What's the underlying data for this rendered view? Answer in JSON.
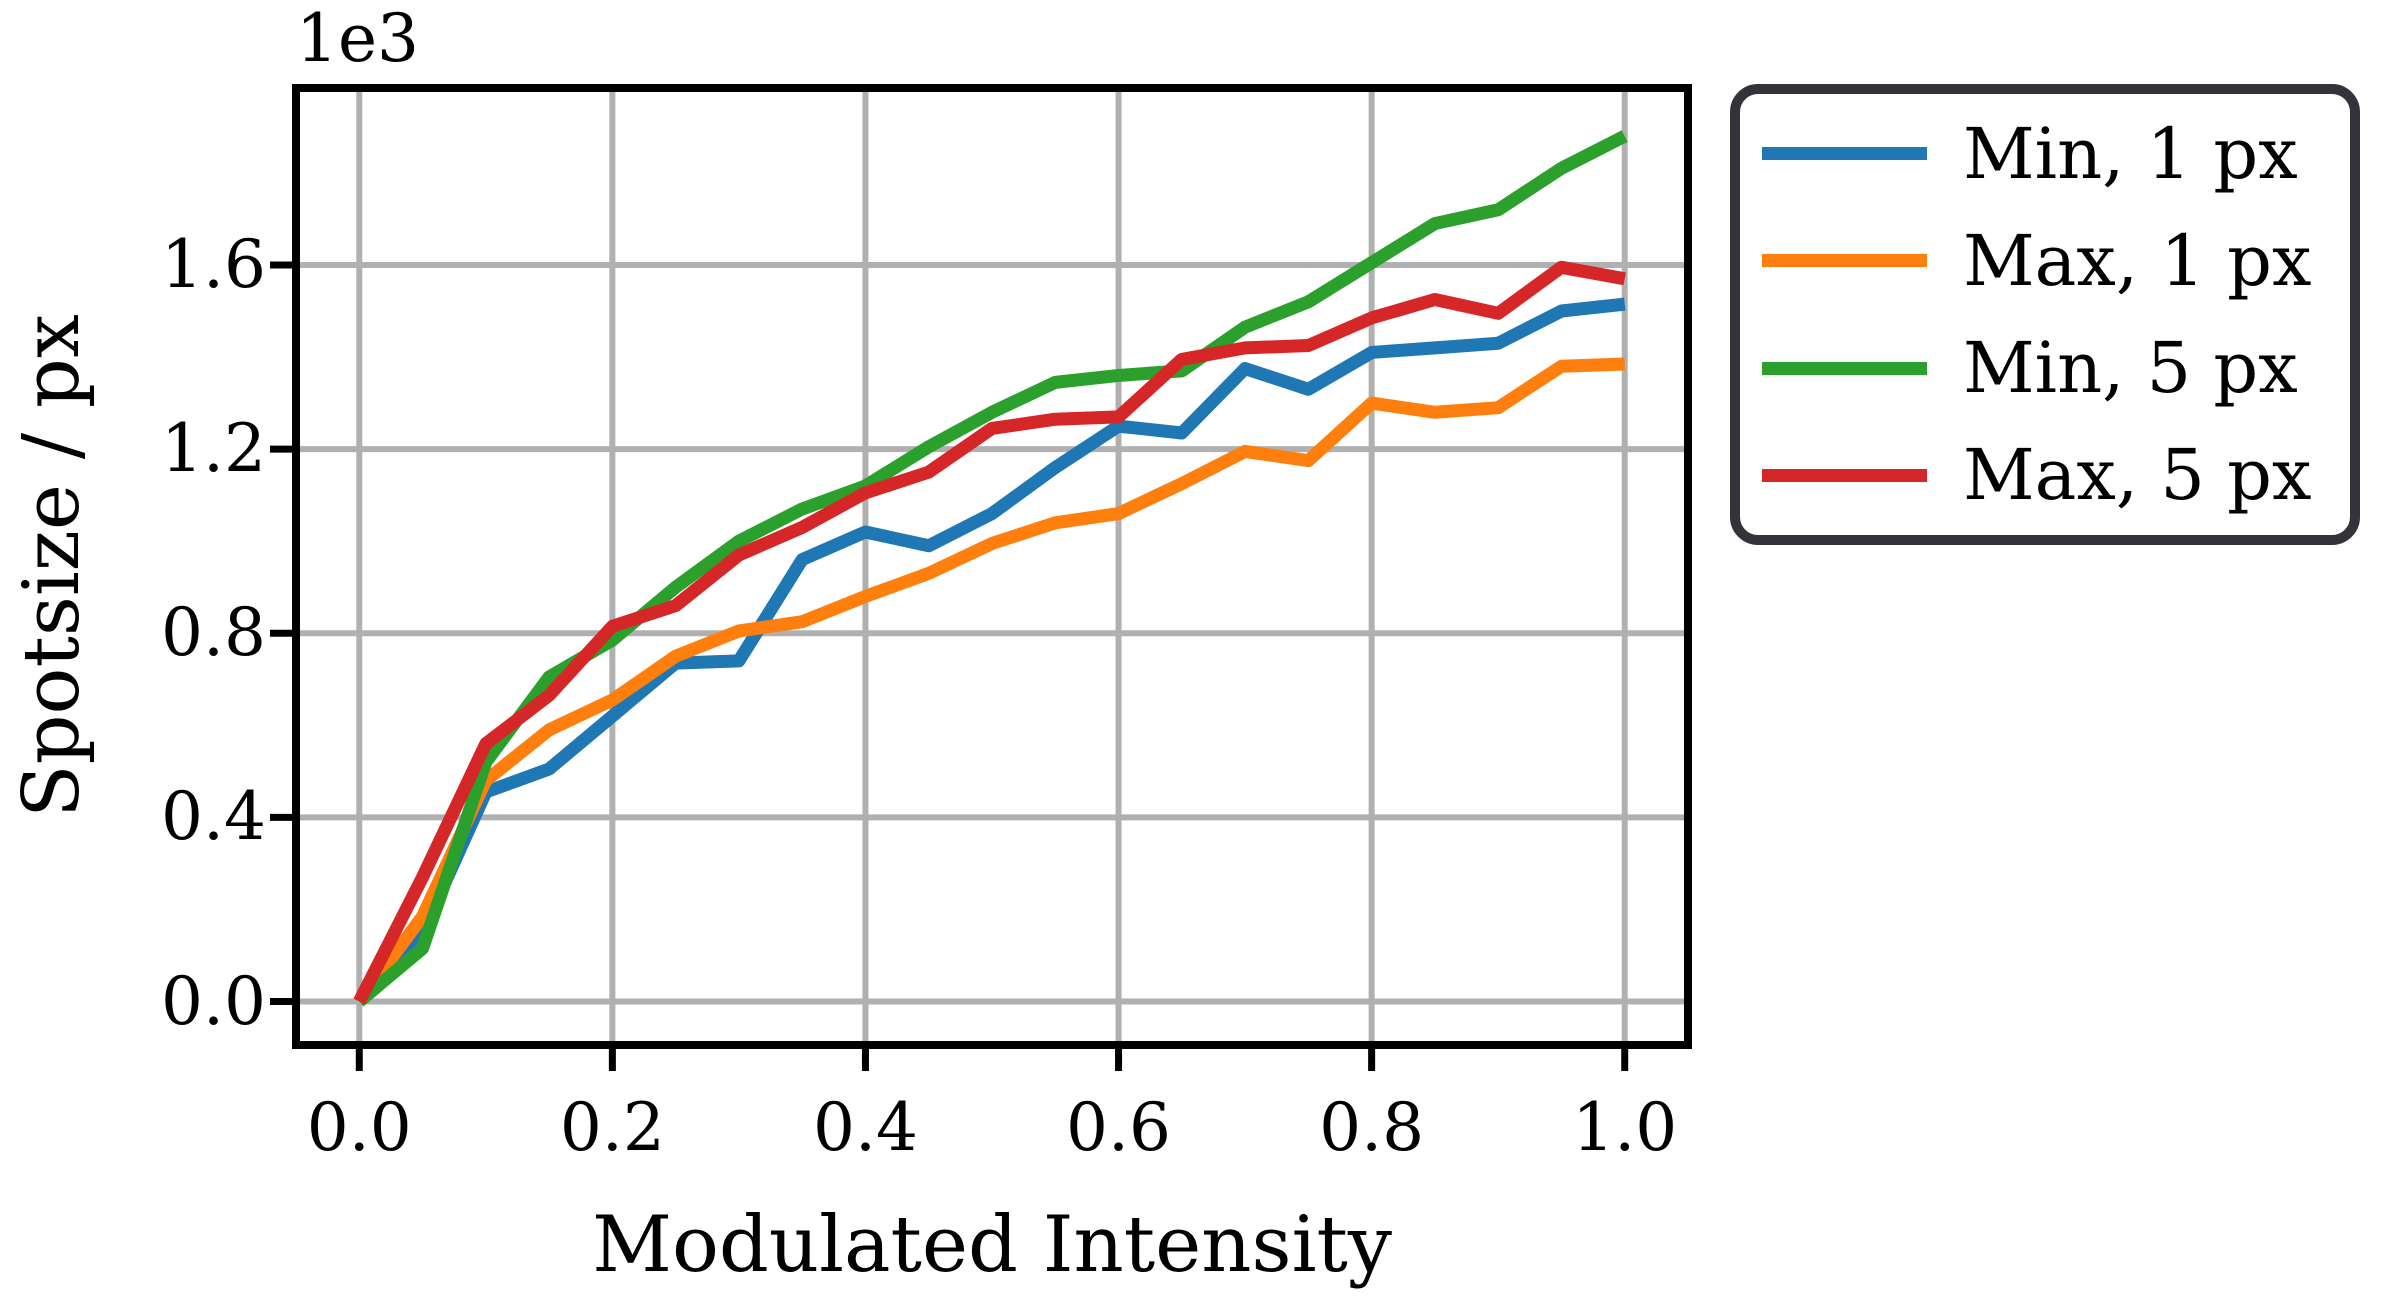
{
  "chart_data": {
    "type": "line",
    "title": "",
    "xlabel": "Modulated Intensity",
    "ylabel": "Spotsize / px",
    "y_axis_offset_text": "1e3",
    "grid": true,
    "legend_position": "upper right, outside plot area",
    "xlim": [
      -0.05,
      1.05
    ],
    "ylim": [
      -94.5,
      1984.5
    ],
    "xticks": [
      0.0,
      0.2,
      0.4,
      0.6,
      0.8,
      1.0
    ],
    "xticklabels": [
      "0.0",
      "0.2",
      "0.4",
      "0.6",
      "0.8",
      "1.0"
    ],
    "yticks": [
      0,
      400,
      800,
      1200,
      1600
    ],
    "yticklabels": [
      "0.0",
      "0.4",
      "0.8",
      "1.2",
      "1.6"
    ],
    "x": [
      0.0,
      0.05,
      0.1,
      0.15,
      0.2,
      0.25,
      0.3,
      0.35,
      0.4,
      0.45,
      0.5,
      0.55,
      0.6,
      0.65,
      0.7,
      0.75,
      0.8,
      0.85,
      0.9,
      0.95,
      1.0
    ],
    "series": [
      {
        "label": "Min, 1 px",
        "color": "#1f77b4",
        "values": [
          0,
          150,
          455,
          505,
          620,
          735,
          740,
          960,
          1020,
          990,
          1060,
          1160,
          1250,
          1235,
          1375,
          1330,
          1410,
          1420,
          1430,
          1500,
          1515
        ]
      },
      {
        "label": "Max, 1 px",
        "color": "#ff7f0e",
        "values": [
          0,
          185,
          480,
          590,
          655,
          750,
          805,
          825,
          880,
          930,
          995,
          1040,
          1060,
          1125,
          1195,
          1175,
          1300,
          1280,
          1290,
          1380,
          1385
        ]
      },
      {
        "label": "Min, 5 px",
        "color": "#2ca02c",
        "values": [
          0,
          115,
          520,
          705,
          785,
          900,
          1000,
          1070,
          1120,
          1205,
          1280,
          1345,
          1360,
          1370,
          1465,
          1520,
          1605,
          1690,
          1720,
          1810,
          1880
        ]
      },
      {
        "label": "Max, 5 px",
        "color": "#d62728",
        "values": [
          0,
          270,
          560,
          665,
          815,
          860,
          970,
          1030,
          1105,
          1150,
          1245,
          1265,
          1270,
          1395,
          1420,
          1425,
          1485,
          1525,
          1495,
          1595,
          1570
        ]
      }
    ],
    "style": {
      "grid_color": "#b0b0b0",
      "spine_color": "#000000",
      "background": "#ffffff",
      "line_width": 13
    }
  }
}
